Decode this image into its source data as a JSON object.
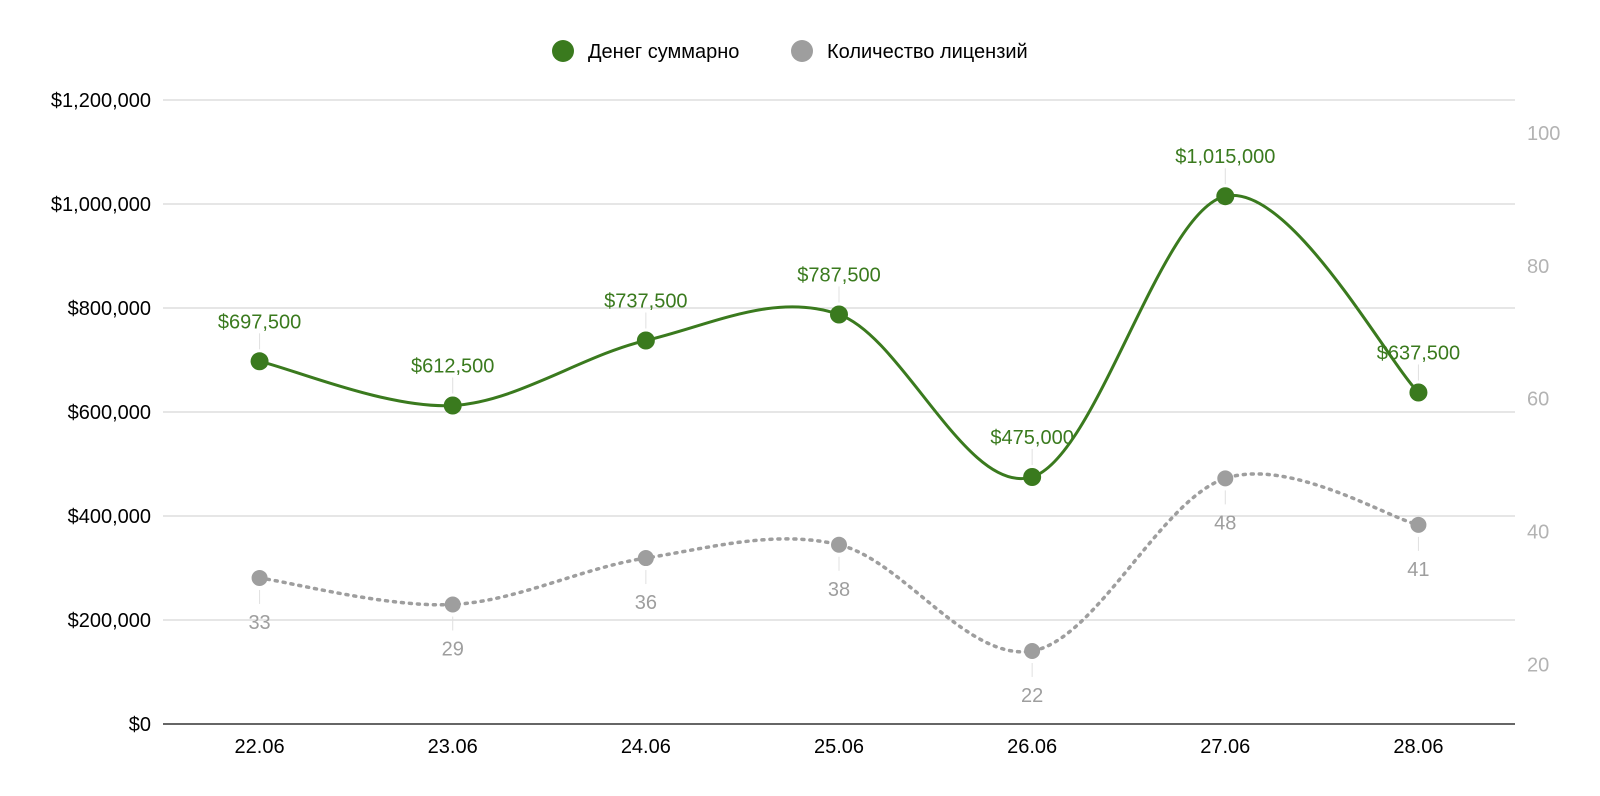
{
  "chart_data": {
    "type": "line",
    "categories": [
      "22.06",
      "23.06",
      "24.06",
      "25.06",
      "26.06",
      "27.06",
      "28.06"
    ],
    "series": [
      {
        "name": "Денег суммарно",
        "axis": "left",
        "color": "#3a7a1e",
        "line_style": "solid",
        "smooth": true,
        "values": [
          697500,
          612500,
          737500,
          787500,
          475000,
          1015000,
          637500
        ],
        "data_labels": [
          "$697,500",
          "$612,500",
          "$737,500",
          "$787,500",
          "$475,000",
          "$1,015,000",
          "$637,500"
        ]
      },
      {
        "name": "Количество лицензий",
        "axis": "right",
        "color": "#9e9e9e",
        "line_style": "dotted",
        "smooth": true,
        "values": [
          33,
          29,
          36,
          38,
          22,
          48,
          41
        ],
        "data_labels": [
          "33",
          "29",
          "36",
          "38",
          "22",
          "48",
          "41"
        ]
      }
    ],
    "y_left": {
      "range": [
        0,
        1200000
      ],
      "ticks": [
        0,
        200000,
        400000,
        600000,
        800000,
        1000000,
        1200000
      ],
      "tick_labels": [
        "$0",
        "$200,000",
        "$400,000",
        "$600,000",
        "$800,000",
        "$1,000,000",
        "$1,200,000"
      ]
    },
    "y_right": {
      "range": [
        11,
        105
      ],
      "ticks": [
        20,
        40,
        60,
        80,
        100
      ],
      "tick_labels": [
        "20",
        "40",
        "60",
        "80",
        "100"
      ]
    },
    "grid": true,
    "legend": "top-center",
    "title": "",
    "xlabel": "",
    "ylabel": ""
  }
}
